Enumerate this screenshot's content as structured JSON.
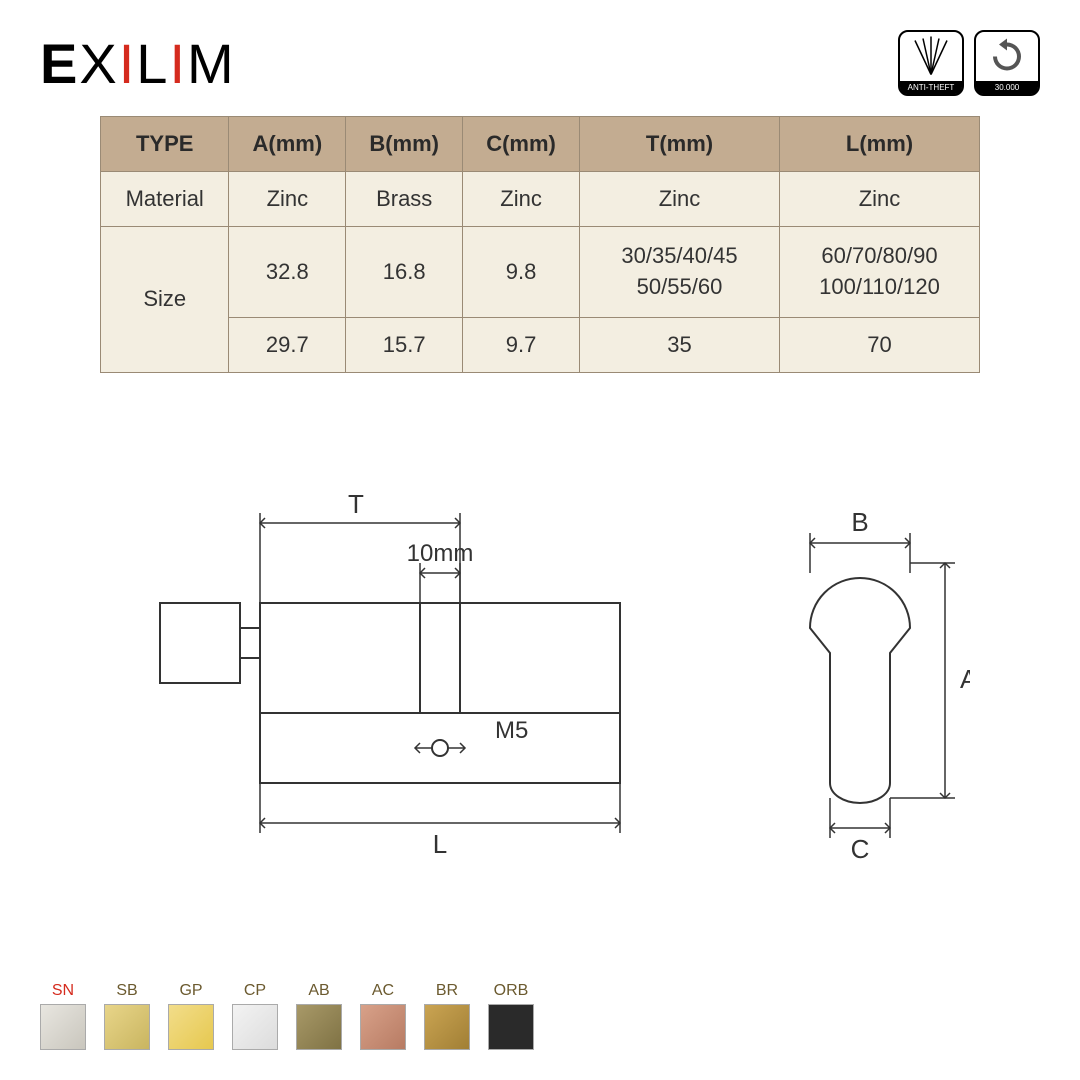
{
  "brand": {
    "name": "EXILIM"
  },
  "badges": {
    "anti_theft": "ANTI-THEFT",
    "cycles": "30.000"
  },
  "table": {
    "columns": [
      "TYPE",
      "A(mm)",
      "B(mm)",
      "C(mm)",
      "T(mm)",
      "L(mm)"
    ],
    "rows": [
      {
        "label": "Material",
        "cells": [
          "Zinc",
          "Brass",
          "Zinc",
          "Zinc",
          "Zinc"
        ]
      },
      {
        "label": "Size",
        "rowspan": 2,
        "row1": [
          "32.8",
          "16.8",
          "9.8",
          "30/35/40/45\n50/55/60",
          "60/70/80/90\n100/110/120"
        ],
        "row2": [
          "29.7",
          "15.7",
          "9.7",
          "35",
          "70"
        ]
      }
    ],
    "header_bg": "#c3ac91",
    "cell_bg": "#f3eee1",
    "border_color": "#9a8a75",
    "font_size": 22
  },
  "diagram": {
    "labels": {
      "T": "T",
      "ten_mm": "10mm",
      "M5": "M5",
      "L": "L",
      "B": "B",
      "A": "A",
      "C": "C"
    },
    "stroke": "#333333",
    "stroke_width": 2
  },
  "swatches": [
    {
      "code": "SN",
      "label_color": "#d52b1e",
      "fill": "linear-gradient(135deg,#e8e6e0,#c9c6bd)"
    },
    {
      "code": "SB",
      "label_color": "#6b5a2f",
      "fill": "linear-gradient(135deg,#e8d589,#c9b560)"
    },
    {
      "code": "GP",
      "label_color": "#6b5a2f",
      "fill": "linear-gradient(135deg,#f2dd8a,#e6c84f)"
    },
    {
      "code": "CP",
      "label_color": "#6b5a2f",
      "fill": "linear-gradient(135deg,#f3f3f3,#dcdcdc)"
    },
    {
      "code": "AB",
      "label_color": "#6b5a2f",
      "fill": "linear-gradient(135deg,#a89968,#7f7244)"
    },
    {
      "code": "AC",
      "label_color": "#6b5a2f",
      "fill": "linear-gradient(135deg,#d8a189,#b77b63)"
    },
    {
      "code": "BR",
      "label_color": "#6b5a2f",
      "fill": "linear-gradient(135deg,#caa452,#a17f35)"
    },
    {
      "code": "ORB",
      "label_color": "#6b5a2f",
      "fill": "#2a2a2a"
    }
  ]
}
